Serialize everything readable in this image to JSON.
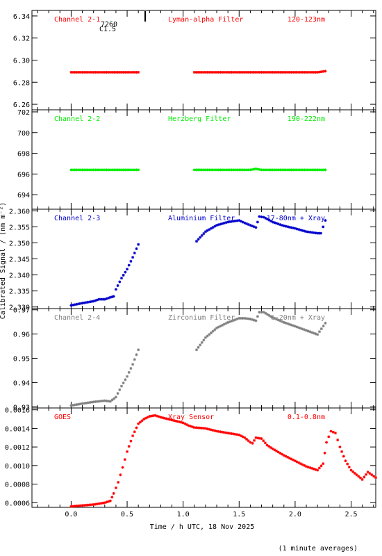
{
  "figure": {
    "y_axis_label": "Calibrated Signal / (nm m⁻²)",
    "x_axis_label": "Time / h UTC, 18 Nov 2025",
    "footnote": "(1 minute averages)",
    "annotation": {
      "line1": "7260",
      "line2": "C1.5"
    },
    "x_ticks": [
      0.0,
      0.5,
      1.0,
      1.5,
      2.0,
      2.5
    ],
    "x_tick_labels": [
      "0.0",
      "0.5",
      "1.0",
      "1.5",
      "2.0",
      "2.5"
    ],
    "xlim": [
      -0.35,
      2.72
    ]
  },
  "chart_data": [
    {
      "type": "scatter",
      "panel_labels": {
        "channel": "Channel 2-1",
        "filter": "Lyman-alpha Filter",
        "band": "120-123nm"
      },
      "color": "#ff0000",
      "ylim": [
        6.255,
        6.345
      ],
      "y_ticks": [
        6.26,
        6.28,
        6.3,
        6.32,
        6.34
      ],
      "y_tick_labels": [
        "6.26",
        "6.28",
        "6.30",
        "6.32",
        "6.34"
      ],
      "series": [
        {
          "segments": [
            {
              "x": [
                0.0,
                0.1,
                0.2,
                0.3,
                0.4,
                0.5,
                0.6
              ],
              "y": [
                6.289,
                6.289,
                6.289,
                6.289,
                6.289,
                6.289,
                6.289
              ]
            },
            {
              "x": [
                1.1,
                1.2,
                1.4,
                1.6,
                1.8,
                2.0,
                2.2,
                2.27
              ],
              "y": [
                6.289,
                6.289,
                6.289,
                6.289,
                6.289,
                6.289,
                6.289,
                6.29
              ]
            }
          ]
        }
      ]
    },
    {
      "type": "scatter",
      "panel_labels": {
        "channel": "Channel 2-2",
        "filter": "Herzberg Filter",
        "band": "190-222nm"
      },
      "color": "#00ee00",
      "ylim": [
        692.6,
        702.2
      ],
      "y_ticks": [
        694,
        696,
        698,
        700,
        702
      ],
      "y_tick_labels": [
        "694",
        "696",
        "698",
        "700",
        "702"
      ],
      "series": [
        {
          "segments": [
            {
              "x": [
                0.0,
                0.2,
                0.4,
                0.6
              ],
              "y": [
                696.4,
                696.4,
                696.4,
                696.4
              ]
            },
            {
              "x": [
                1.1,
                1.4,
                1.6,
                1.65,
                1.7,
                1.9,
                2.1,
                2.27
              ],
              "y": [
                696.4,
                696.4,
                696.4,
                696.5,
                696.4,
                696.4,
                696.4,
                696.4
              ]
            }
          ]
        }
      ]
    },
    {
      "type": "scatter",
      "panel_labels": {
        "channel": "Channel 2-3",
        "filter": "Aluminium Filter",
        "band": "17-80nm + Xray"
      },
      "color": "#0000cc",
      "ylim": [
        2.3295,
        2.3605
      ],
      "y_ticks": [
        2.33,
        2.335,
        2.34,
        2.345,
        2.35,
        2.355,
        2.36
      ],
      "y_tick_labels": [
        "2.330",
        "2.335",
        "2.340",
        "2.345",
        "2.350",
        "2.355",
        "2.360"
      ],
      "series": [
        {
          "segments": [
            {
              "x": [
                0.0,
                0.1,
                0.2,
                0.25,
                0.3,
                0.35,
                0.38,
                0.4,
                0.45,
                0.5,
                0.55,
                0.6
              ],
              "y": [
                2.3305,
                2.3312,
                2.3318,
                2.3324,
                2.3324,
                2.333,
                2.3333,
                2.3355,
                2.339,
                2.3418,
                2.3455,
                2.3495
              ]
            },
            {
              "x": [
                1.12,
                1.2,
                1.3,
                1.4,
                1.5,
                1.55,
                1.6,
                1.65,
                1.68,
                1.72,
                1.8,
                1.9,
                2.0,
                2.1,
                2.2,
                2.23,
                2.27
              ],
              "y": [
                2.3505,
                2.3535,
                2.3555,
                2.3565,
                2.357,
                2.3562,
                2.3555,
                2.3548,
                2.3582,
                2.358,
                2.3565,
                2.3553,
                2.3545,
                2.3535,
                2.353,
                2.353,
                2.357
              ]
            }
          ]
        }
      ]
    },
    {
      "type": "scatter",
      "panel_labels": {
        "channel": "Channel 2-4",
        "filter": "Zirconium Filter",
        "band": "6-20nm + Xray"
      },
      "color": "#808080",
      "ylim": [
        0.9295,
        0.9705
      ],
      "y_ticks": [
        0.93,
        0.94,
        0.95,
        0.96,
        0.97
      ],
      "y_tick_labels": [
        "0.93",
        "0.94",
        "0.95",
        "0.96",
        "0.97"
      ],
      "series": [
        {
          "segments": [
            {
              "x": [
                0.0,
                0.1,
                0.2,
                0.3,
                0.35,
                0.4,
                0.45,
                0.5,
                0.55,
                0.6
              ],
              "y": [
                0.9305,
                0.9313,
                0.932,
                0.9325,
                0.9322,
                0.934,
                0.9385,
                0.9425,
                0.9475,
                0.9535
              ]
            },
            {
              "x": [
                1.12,
                1.2,
                1.3,
                1.4,
                1.5,
                1.55,
                1.6,
                1.65,
                1.68,
                1.72,
                1.8,
                1.9,
                2.0,
                2.1,
                2.2,
                2.27
              ],
              "y": [
                0.9535,
                0.9585,
                0.9625,
                0.9648,
                0.9665,
                0.9665,
                0.9662,
                0.9655,
                0.969,
                0.969,
                0.9668,
                0.9648,
                0.9632,
                0.9615,
                0.9598,
                0.9645
              ]
            }
          ]
        }
      ]
    },
    {
      "type": "scatter",
      "panel_labels": {
        "channel": "GOES",
        "filter": "Xray Sensor",
        "band": "0.1-0.8nm"
      },
      "color": "#ff0000",
      "ylim": [
        0.00055,
        0.00162
      ],
      "y_ticks": [
        0.0006,
        0.0008,
        0.001,
        0.0012,
        0.0014,
        0.0016
      ],
      "y_tick_labels": [
        "0.0006",
        "0.0008",
        "0.0010",
        "0.0012",
        "0.0014",
        "0.0016"
      ],
      "series": [
        {
          "segments": [
            {
              "x": [
                0.0,
                0.1,
                0.2,
                0.3,
                0.35,
                0.38,
                0.42,
                0.46,
                0.5,
                0.55,
                0.6,
                0.65,
                0.7,
                0.75,
                0.8,
                0.9,
                1.0,
                1.05,
                1.1,
                1.2,
                1.3,
                1.4,
                1.5,
                1.55,
                1.6,
                1.62,
                1.65,
                1.7,
                1.75,
                1.8,
                1.9,
                2.0,
                2.1,
                2.2,
                2.25,
                2.28,
                2.32,
                2.36,
                2.4,
                2.45,
                2.5,
                2.55,
                2.6,
                2.65,
                2.72
              ],
              "y": [
                0.00056,
                0.00057,
                0.00058,
                0.0006,
                0.00062,
                0.0007,
                0.00082,
                0.00098,
                0.00115,
                0.00132,
                0.00145,
                0.0015,
                0.00153,
                0.00154,
                0.00152,
                0.00149,
                0.00146,
                0.00143,
                0.00141,
                0.0014,
                0.00137,
                0.00135,
                0.00133,
                0.0013,
                0.00125,
                0.00124,
                0.0013,
                0.00129,
                0.00122,
                0.00118,
                0.00111,
                0.00105,
                0.00099,
                0.00095,
                0.00102,
                0.00125,
                0.00137,
                0.00135,
                0.0012,
                0.00105,
                0.00095,
                0.0009,
                0.00085,
                0.00093,
                0.00087
              ]
            }
          ]
        }
      ]
    }
  ]
}
